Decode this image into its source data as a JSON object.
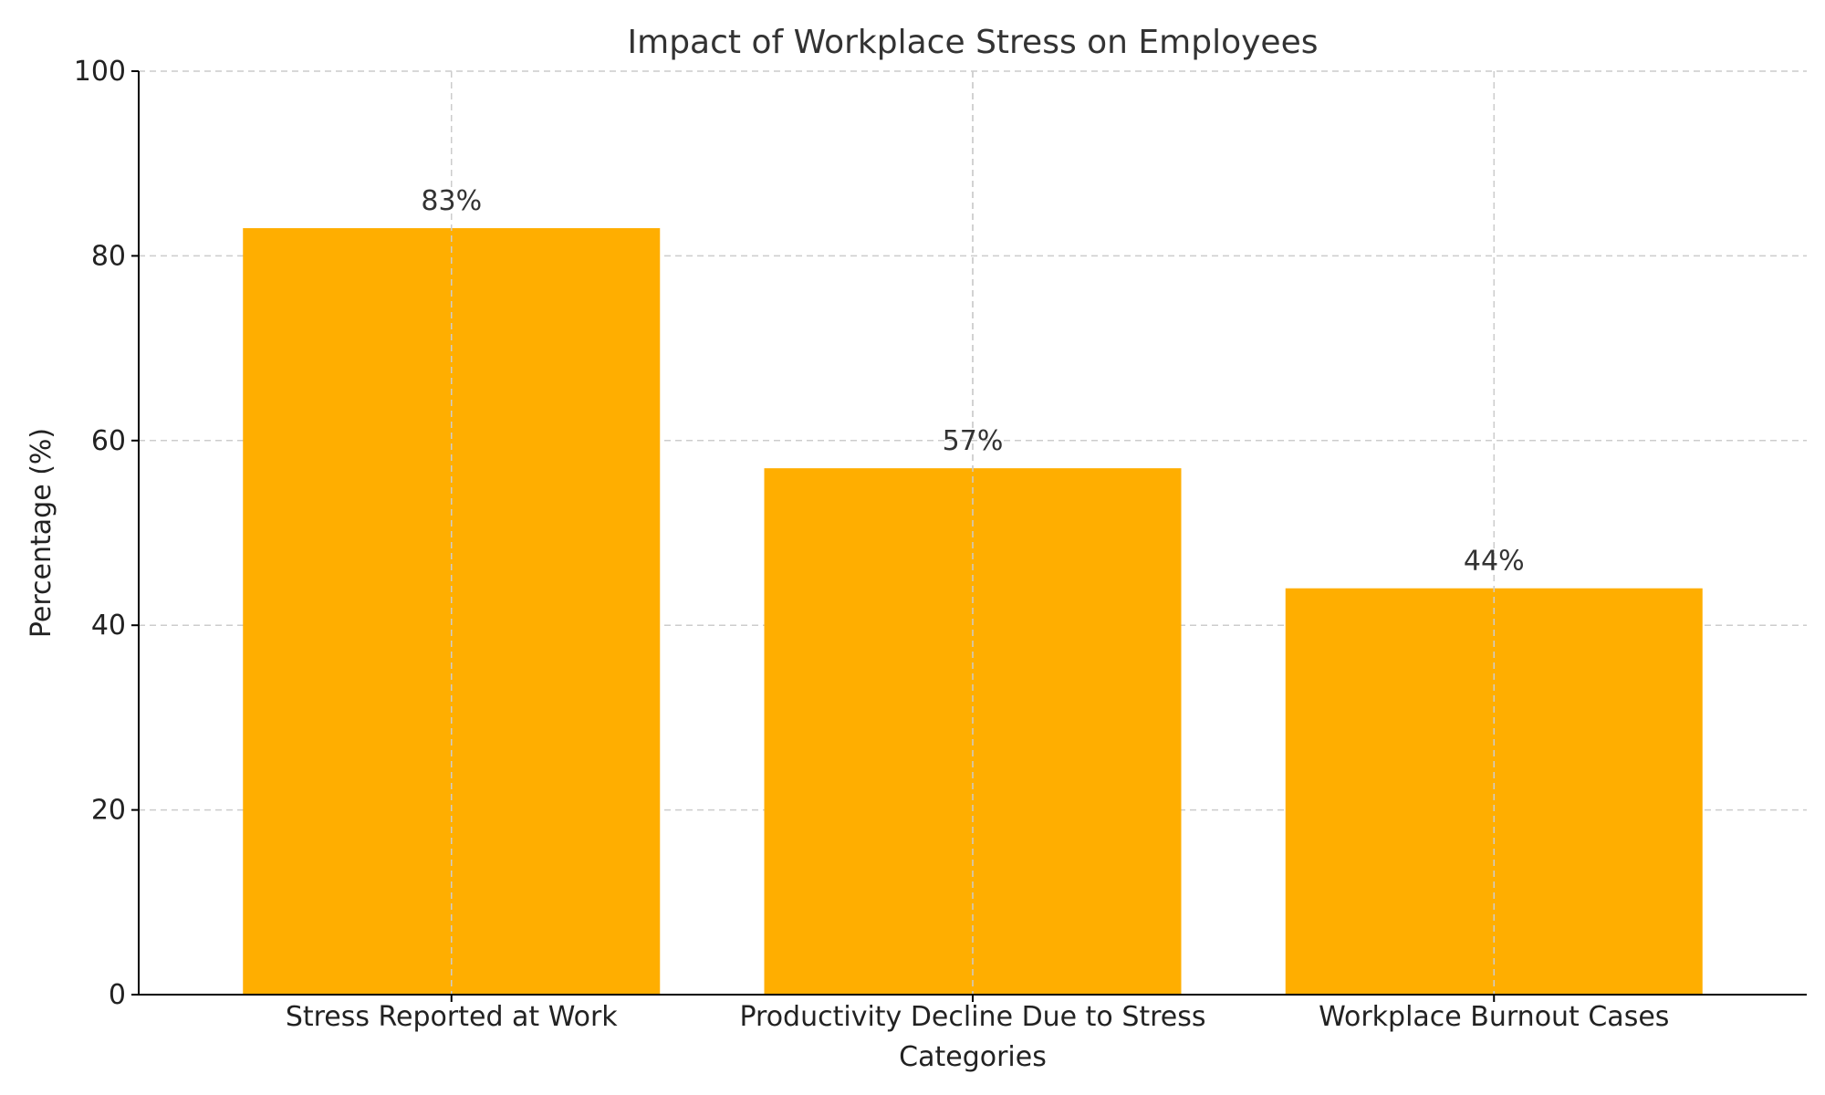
{
  "chart_data": {
    "type": "bar",
    "title": "Impact of Workplace Stress on Employees",
    "xlabel": "Categories",
    "ylabel": "Percentage (%)",
    "categories": [
      "Stress Reported at Work",
      "Productivity Decline Due to Stress",
      "Workplace Burnout Cases"
    ],
    "values": [
      83,
      57,
      44
    ],
    "data_labels": [
      "83%",
      "57%",
      "44%"
    ],
    "ylim": [
      0,
      100
    ],
    "yticks": [
      0,
      20,
      40,
      60,
      80,
      100
    ],
    "grid": true,
    "legend": "none",
    "colors": {
      "bar": "#FFAE00"
    }
  }
}
